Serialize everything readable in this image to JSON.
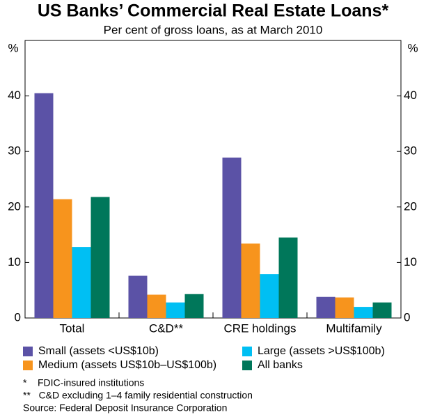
{
  "chart_data": {
    "type": "bar",
    "title": "US Banks’ Commercial Real Estate Loans*",
    "subtitle": "Per cent of gross loans, as at March 2010",
    "y_label": "%",
    "y2_label": "%",
    "categories": [
      "Total",
      "C&D**",
      "CRE holdings",
      "Multifamily"
    ],
    "series": [
      {
        "name": "Small (assets <US$10b)",
        "color": "#5b52a6",
        "values": [
          40.5,
          7.6,
          28.9,
          3.8
        ]
      },
      {
        "name": "Medium (assets US$10b–US$100b)",
        "color": "#f7941d",
        "values": [
          21.4,
          4.2,
          13.4,
          3.7
        ]
      },
      {
        "name": "Large (assets >US$100b)",
        "color": "#00bff3",
        "values": [
          12.8,
          2.8,
          7.9,
          2.0
        ]
      },
      {
        "name": "All banks",
        "color": "#00775a",
        "values": [
          21.8,
          4.3,
          14.5,
          2.8
        ]
      }
    ],
    "ylim": [
      0,
      50
    ],
    "yticks": [
      0,
      10,
      20,
      30,
      40
    ],
    "y2lim": [
      0,
      50
    ],
    "y2ticks": [
      0,
      10,
      20,
      30,
      40
    ],
    "notes": [
      "*    FDIC-insured institutions",
      "**   C&D excluding 1–4 family residential construction",
      "Source: Federal Deposit Insurance Corporation"
    ]
  }
}
